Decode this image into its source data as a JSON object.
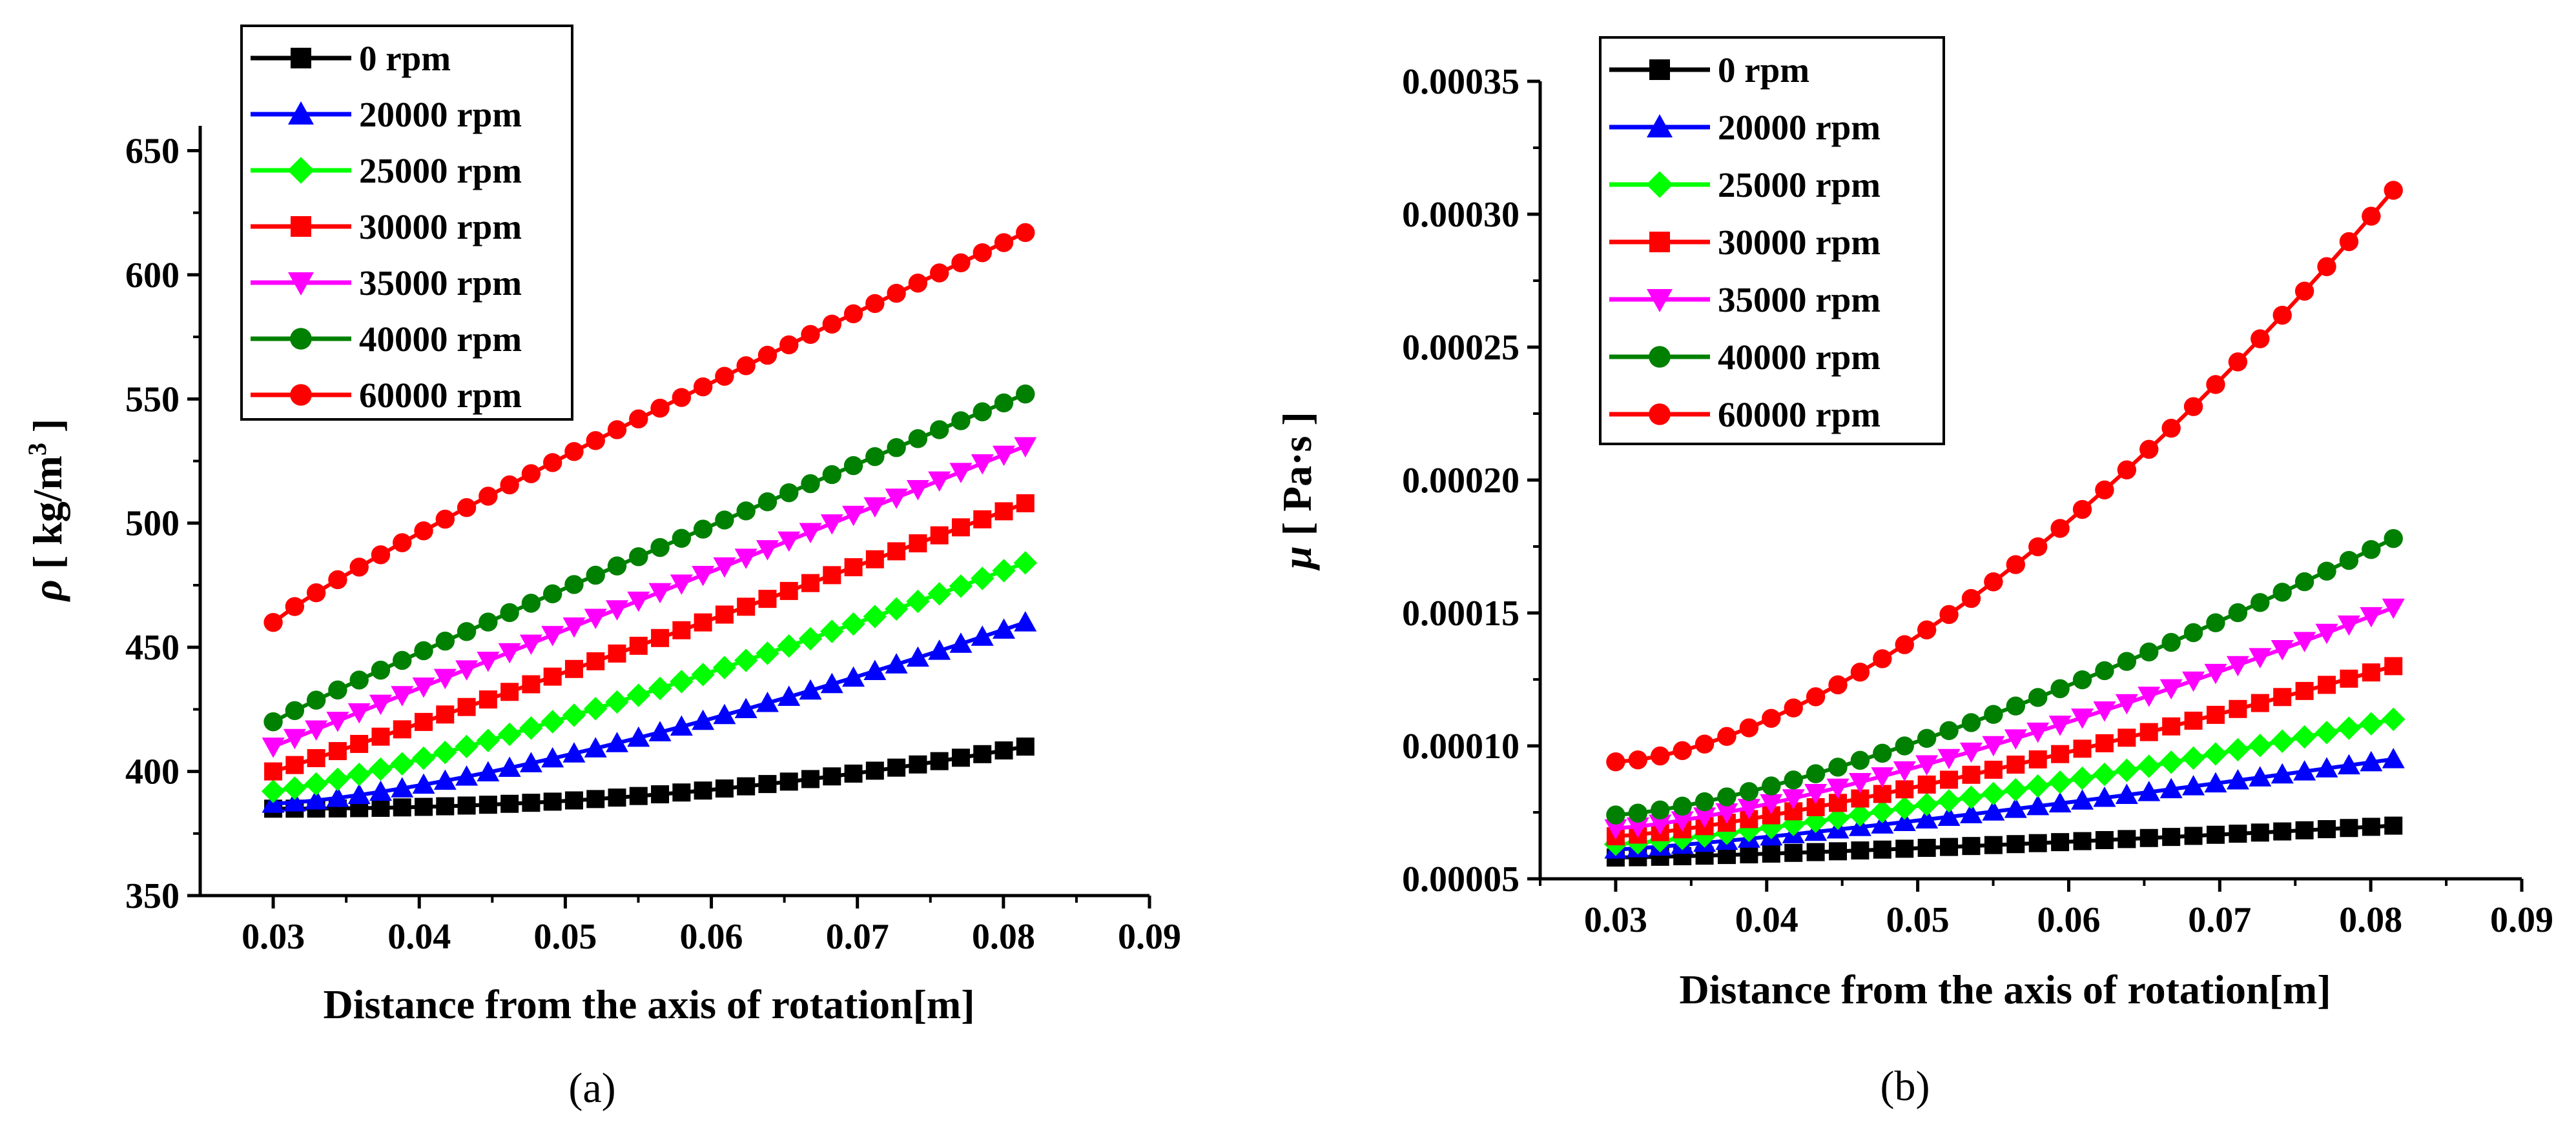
{
  "chart_data": [
    {
      "type": "line",
      "panel_label": "(a)",
      "ylabel_symbol": "ρ",
      "ylabel_unit_pre": "[ kg/m",
      "ylabel_unit_sup": "3",
      "ylabel_unit_post": " ]",
      "xlabel": "Distance from the axis of rotation[m]",
      "xlim": [
        0.025,
        0.09
      ],
      "ylim": [
        350,
        660
      ],
      "xticks": [
        0.03,
        0.04,
        0.05,
        0.06,
        0.07,
        0.08,
        0.09
      ],
      "xtick_labels": [
        "0.03",
        "0.04",
        "0.05",
        "0.06",
        "0.07",
        "0.08",
        "0.09"
      ],
      "yticks": [
        350,
        400,
        450,
        500,
        550,
        600,
        650
      ],
      "ytick_labels": [
        "350",
        "400",
        "450",
        "500",
        "550",
        "600",
        "650"
      ],
      "x_start": 0.03,
      "x_end": 0.0815,
      "n_points": 36,
      "series": [
        {
          "name": "0 rpm",
          "color": "#000000",
          "marker": "square",
          "start": 385,
          "end": 410,
          "curve": 2.2
        },
        {
          "name": "20000 rpm",
          "color": "#0000ff",
          "marker": "triangle-up",
          "start": 387,
          "end": 460,
          "curve": 1.4
        },
        {
          "name": "25000 rpm",
          "color": "#00ff00",
          "marker": "diamond",
          "start": 392,
          "end": 484,
          "curve": 1.2
        },
        {
          "name": "30000 rpm",
          "color": "#ff0000",
          "marker": "square",
          "start": 400,
          "end": 508,
          "curve": 1.05
        },
        {
          "name": "35000 rpm",
          "color": "#ff00ff",
          "marker": "triangle-down",
          "start": 410,
          "end": 531,
          "curve": 1.0
        },
        {
          "name": "40000 rpm",
          "color": "#008000",
          "marker": "circle",
          "start": 420,
          "end": 552,
          "curve": 0.95
        },
        {
          "name": "60000 rpm",
          "color": "#ff0000",
          "marker": "circle",
          "start": 460,
          "end": 617,
          "curve": 0.9
        }
      ]
    },
    {
      "type": "line",
      "panel_label": "(b)",
      "ylabel_symbol": "μ",
      "ylabel_unit_pre": "[ Pa·s",
      "ylabel_unit_sup": "",
      "ylabel_unit_post": " ]",
      "xlabel": "Distance from the axis of rotation[m]",
      "xlim": [
        0.025,
        0.09
      ],
      "ylim": [
        5e-05,
        0.00035
      ],
      "xticks": [
        0.03,
        0.04,
        0.05,
        0.06,
        0.07,
        0.08,
        0.09
      ],
      "xtick_labels": [
        "0.03",
        "0.04",
        "0.05",
        "0.06",
        "0.07",
        "0.08",
        "0.09"
      ],
      "yticks": [
        5e-05,
        0.0001,
        0.00015,
        0.0002,
        0.00025,
        0.0003,
        0.00035
      ],
      "ytick_labels": [
        "0.00005",
        "0.00010",
        "0.00015",
        "0.00020",
        "0.00025",
        "0.00030",
        "0.00035"
      ],
      "x_start": 0.03,
      "x_end": 0.0815,
      "n_points": 36,
      "series": [
        {
          "name": "0 rpm",
          "color": "#000000",
          "marker": "square",
          "start": 5.8e-05,
          "end": 7e-05,
          "curve": 1.3
        },
        {
          "name": "20000 rpm",
          "color": "#0000ff",
          "marker": "triangle-up",
          "start": 6.1e-05,
          "end": 9.5e-05,
          "curve": 1.2
        },
        {
          "name": "25000 rpm",
          "color": "#00ff00",
          "marker": "diamond",
          "start": 6.3e-05,
          "end": 0.00011,
          "curve": 1.25
        },
        {
          "name": "30000 rpm",
          "color": "#ff0000",
          "marker": "square",
          "start": 6.6e-05,
          "end": 0.00013,
          "curve": 1.3
        },
        {
          "name": "35000 rpm",
          "color": "#ff00ff",
          "marker": "triangle-down",
          "start": 6.9e-05,
          "end": 0.000152,
          "curve": 1.35
        },
        {
          "name": "40000 rpm",
          "color": "#008000",
          "marker": "circle",
          "start": 7.4e-05,
          "end": 0.000178,
          "curve": 1.4
        },
        {
          "name": "60000 rpm",
          "color": "#ff0000",
          "marker": "circle",
          "start": 9.4e-05,
          "end": 0.000309,
          "curve": 1.6
        }
      ]
    }
  ]
}
